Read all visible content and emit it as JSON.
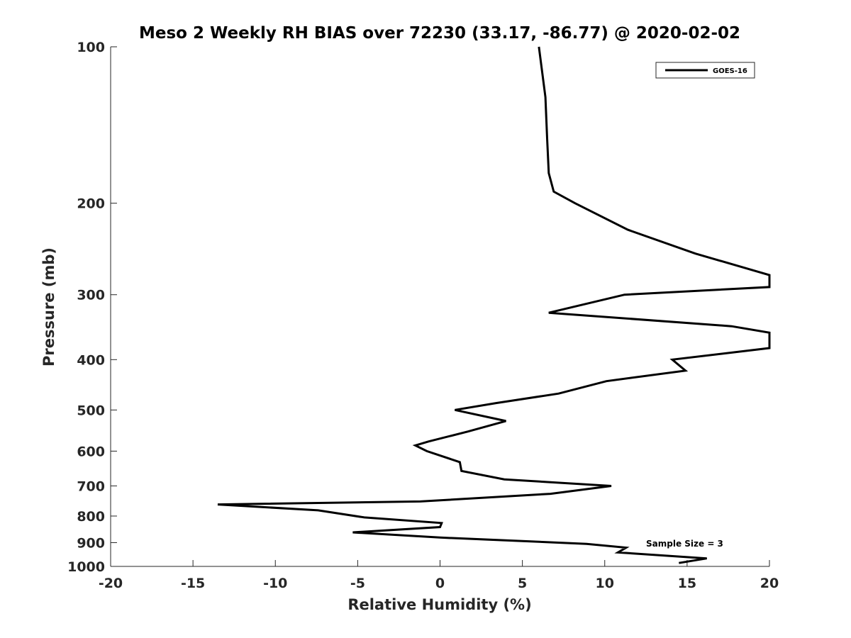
{
  "chart_data": {
    "type": "line",
    "title": "Meso 2 Weekly RH BIAS over 72230 (33.17, -86.77) @ 2020-02-02",
    "xlabel": "Relative Humidity (%)",
    "ylabel": "Pressure (mb)",
    "xlim": [
      -20,
      20
    ],
    "ylim": [
      1000,
      100
    ],
    "y_scale": "log",
    "y_direction": "reversed",
    "grid": false,
    "legend_position": "top-right",
    "x_ticks": [
      -20,
      -15,
      -10,
      -5,
      0,
      5,
      10,
      15,
      20
    ],
    "x_tick_labels": [
      "-20",
      "-15",
      "-10",
      "-5",
      "0",
      "5",
      "10",
      "15",
      "20"
    ],
    "y_ticks": [
      100,
      200,
      300,
      400,
      500,
      600,
      700,
      800,
      900,
      1000
    ],
    "y_tick_labels": [
      "100",
      "200",
      "300",
      "400",
      "500",
      "600",
      "700",
      "800",
      "900",
      "1000"
    ],
    "annotation": "Sample Size = 3",
    "series": [
      {
        "name": "GOES-16",
        "color": "#000000",
        "points": [
          [
            6.0,
            100
          ],
          [
            6.4,
            125
          ],
          [
            6.5,
            150
          ],
          [
            6.6,
            175
          ],
          [
            6.9,
            190
          ],
          [
            8.2,
            200
          ],
          [
            11.4,
            225
          ],
          [
            15.5,
            250
          ],
          [
            20.0,
            275
          ],
          [
            20.0,
            290
          ],
          [
            11.2,
            300
          ],
          [
            6.6,
            325
          ],
          [
            17.7,
            345
          ],
          [
            20.0,
            355
          ],
          [
            20.0,
            380
          ],
          [
            14.1,
            400
          ],
          [
            14.9,
            420
          ],
          [
            10.1,
            440
          ],
          [
            7.2,
            465
          ],
          [
            3.4,
            485
          ],
          [
            0.9,
            500
          ],
          [
            4.0,
            525
          ],
          [
            1.7,
            550
          ],
          [
            -0.7,
            575
          ],
          [
            -1.5,
            585
          ],
          [
            -0.8,
            600
          ],
          [
            1.2,
            630
          ],
          [
            1.3,
            655
          ],
          [
            3.9,
            680
          ],
          [
            10.4,
            700
          ],
          [
            6.7,
            725
          ],
          [
            -1.2,
            750
          ],
          [
            -13.5,
            760
          ],
          [
            -7.4,
            780
          ],
          [
            -4.6,
            805
          ],
          [
            0.1,
            825
          ],
          [
            0.0,
            840
          ],
          [
            -5.3,
            860
          ],
          [
            0.0,
            880
          ],
          [
            8.9,
            905
          ],
          [
            11.3,
            920
          ],
          [
            10.8,
            940
          ],
          [
            16.2,
            965
          ],
          [
            14.5,
            985
          ]
        ]
      }
    ]
  }
}
